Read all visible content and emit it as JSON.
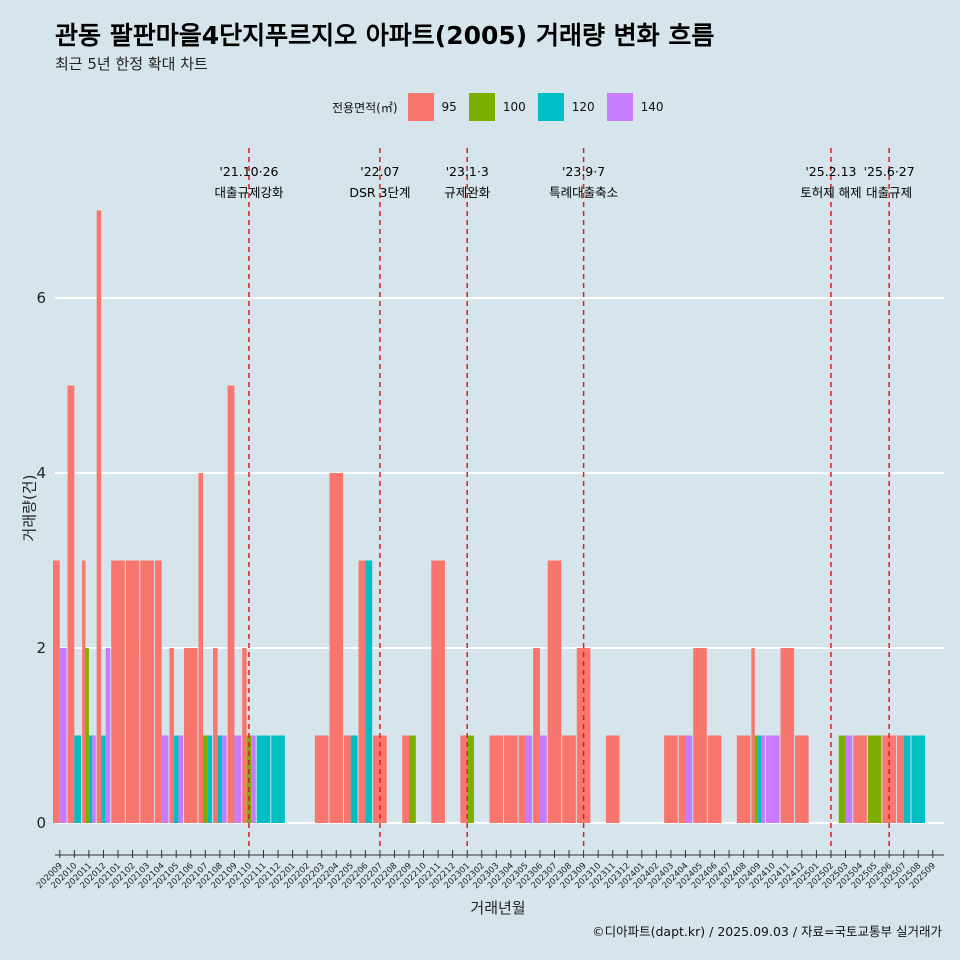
{
  "title": "관동 팔판마을4단지푸르지오 아파트(2005) 거래량 변화 흐름",
  "subtitle": "최근 5년 한정 확대 차트",
  "caption": "©디아파트(dapt.kr) / 2025.09.03 / 자료=국토교통부 실거래가",
  "colors": {
    "background": "#d6e4eb",
    "grid": "#ffffff",
    "event_line": "#e31a1c"
  },
  "chart_data": {
    "type": "bar",
    "xlabel": "거래년월",
    "ylabel": "거래량(건)",
    "ylim": [
      -0.3,
      7.2
    ],
    "yticks": [
      0,
      2,
      4,
      6
    ],
    "grid": true,
    "legend": {
      "title": "전용면적(㎡)",
      "position": "top"
    },
    "categories": [
      "202009",
      "202010",
      "202011",
      "202012",
      "202101",
      "202102",
      "202103",
      "202104",
      "202105",
      "202106",
      "202107",
      "202108",
      "202109",
      "202110",
      "202111",
      "202112",
      "202201",
      "202202",
      "202203",
      "202204",
      "202205",
      "202206",
      "202207",
      "202208",
      "202209",
      "202210",
      "202211",
      "202212",
      "202301",
      "202302",
      "202303",
      "202304",
      "202305",
      "202306",
      "202307",
      "202308",
      "202309",
      "202310",
      "202311",
      "202312",
      "202401",
      "202402",
      "202403",
      "202404",
      "202405",
      "202406",
      "202407",
      "202408",
      "202409",
      "202410",
      "202411",
      "202412",
      "202501",
      "202502",
      "202503",
      "202504",
      "202505",
      "202506",
      "202507",
      "202508",
      "202509"
    ],
    "series": [
      {
        "name": "95",
        "color": "#f8766d",
        "values": [
          3,
          5,
          3,
          7,
          3,
          3,
          3,
          3,
          2,
          2,
          4,
          2,
          5,
          2,
          0,
          0,
          0,
          0,
          1,
          4,
          1,
          3,
          1,
          0,
          1,
          0,
          3,
          0,
          1,
          0,
          1,
          1,
          1,
          2,
          3,
          1,
          2,
          0,
          1,
          0,
          0,
          0,
          1,
          1,
          2,
          1,
          0,
          1,
          2,
          0,
          2,
          1,
          0,
          0,
          0,
          1,
          0,
          1,
          1,
          0,
          0
        ]
      },
      {
        "name": "100",
        "color": "#7cae00",
        "values": [
          0,
          0,
          2,
          0,
          0,
          0,
          0,
          0,
          0,
          0,
          1,
          0,
          0,
          1,
          0,
          0,
          0,
          0,
          0,
          0,
          0,
          0,
          0,
          0,
          1,
          0,
          0,
          0,
          1,
          0,
          0,
          0,
          0,
          0,
          0,
          0,
          0,
          0,
          0,
          0,
          0,
          0,
          0,
          0,
          0,
          0,
          0,
          0,
          1,
          0,
          0,
          0,
          0,
          0,
          1,
          0,
          1,
          0,
          0,
          0,
          0
        ]
      },
      {
        "name": "120",
        "color": "#00bfc4",
        "values": [
          0,
          1,
          1,
          1,
          0,
          0,
          0,
          0,
          1,
          0,
          1,
          1,
          0,
          0,
          1,
          1,
          0,
          0,
          0,
          0,
          1,
          3,
          0,
          0,
          0,
          0,
          0,
          0,
          0,
          0,
          0,
          0,
          0,
          0,
          0,
          0,
          0,
          0,
          0,
          0,
          0,
          0,
          0,
          0,
          0,
          0,
          0,
          0,
          1,
          0,
          0,
          0,
          0,
          0,
          0,
          0,
          0,
          0,
          1,
          1,
          0
        ]
      },
      {
        "name": "140",
        "color": "#c77cff",
        "values": [
          2,
          0,
          1,
          2,
          0,
          0,
          0,
          1,
          1,
          0,
          0,
          1,
          1,
          1,
          0,
          0,
          0,
          0,
          0,
          0,
          0,
          0,
          0,
          0,
          0,
          0,
          0,
          0,
          0,
          0,
          0,
          0,
          1,
          1,
          0,
          0,
          0,
          0,
          0,
          0,
          0,
          0,
          0,
          1,
          0,
          0,
          0,
          0,
          1,
          1,
          0,
          0,
          0,
          0,
          1,
          0,
          0,
          0,
          0,
          0,
          0
        ]
      }
    ],
    "events": [
      {
        "date_label": "'21.10·26",
        "text": "대출규제강화",
        "month": "202110"
      },
      {
        "date_label": "'22.07",
        "text": "DSR 3단계",
        "month": "202207"
      },
      {
        "date_label": "'23.1·3",
        "text": "규제완화",
        "month": "202301"
      },
      {
        "date_label": "'23.9·7",
        "text": "특례대출축소",
        "month": "202309"
      },
      {
        "date_label": "'25.2.13",
        "text": "토허제 해제",
        "month": "202502"
      },
      {
        "date_label": "'25.6·27",
        "text": "대출규제",
        "month": "202506"
      }
    ]
  }
}
